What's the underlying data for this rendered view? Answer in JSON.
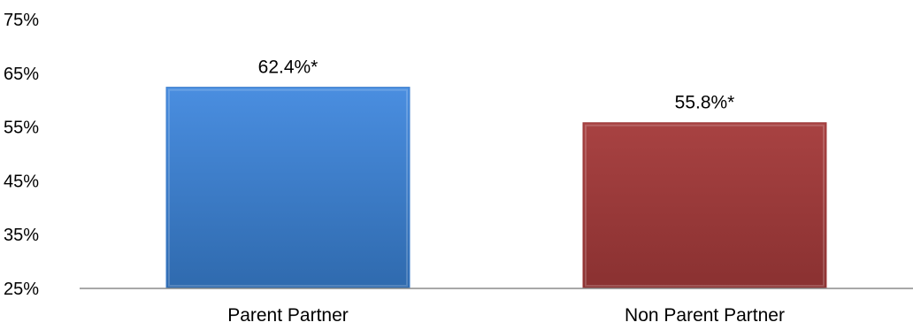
{
  "chart_data": {
    "type": "bar",
    "categories": [
      "Parent Partner",
      "Non Parent Partner"
    ],
    "values": [
      62.4,
      55.8
    ],
    "data_labels": [
      "62.4%*",
      "55.8%*"
    ],
    "colors": [
      "#3f7fcc",
      "#9e3b3b"
    ],
    "yticks": [
      "25%",
      "35%",
      "45%",
      "55%",
      "65%",
      "75%"
    ],
    "ytick_values": [
      25,
      35,
      45,
      55,
      65,
      75
    ],
    "ylim": [
      25,
      75
    ],
    "grid": false,
    "legend": "none"
  }
}
